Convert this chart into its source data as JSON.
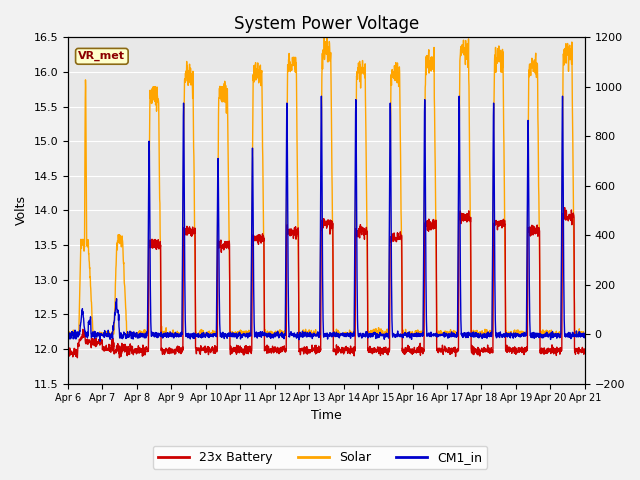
{
  "title": "System Power Voltage",
  "xlabel": "Time",
  "ylabel": "Volts",
  "ylim_left": [
    11.5,
    16.5
  ],
  "ylim_right": [
    -200,
    1200
  ],
  "yticks_left": [
    11.5,
    12.0,
    12.5,
    13.0,
    13.5,
    14.0,
    14.5,
    15.0,
    15.5,
    16.0,
    16.5
  ],
  "yticks_right": [
    -200,
    0,
    200,
    400,
    600,
    800,
    1000,
    1200
  ],
  "color_battery": "#cc0000",
  "color_solar": "#ffa500",
  "color_cm1": "#0000cc",
  "bg_color": "#e8e8e8",
  "legend_label_battery": "23x Battery",
  "legend_label_solar": "Solar",
  "legend_label_cm1": "CM1_in",
  "annotation_text": "VR_met",
  "linewidth": 1.0,
  "title_fontsize": 12,
  "axis_fontsize": 9,
  "legend_fontsize": 9
}
